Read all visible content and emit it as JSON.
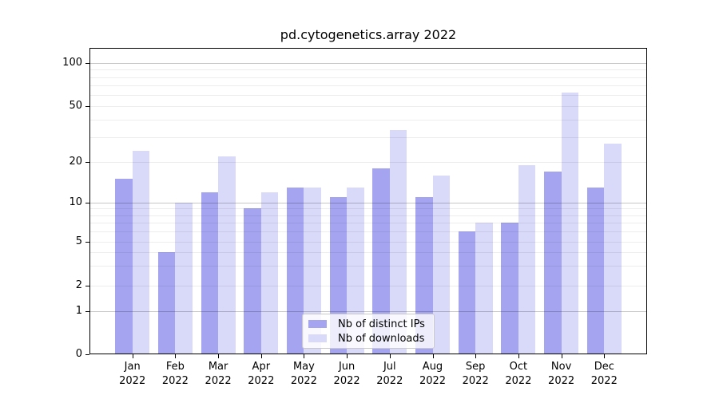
{
  "title": "pd.cytogenetics.array 2022",
  "legend": {
    "items": [
      {
        "label": "Nb of distinct IPs",
        "color": "#a4a4f1"
      },
      {
        "label": "Nb of downloads",
        "color": "#d9d9f9"
      }
    ]
  },
  "chart_data": {
    "type": "bar",
    "title": "pd.cytogenetics.array 2022",
    "categories": [
      "Jan 2022",
      "Feb 2022",
      "Mar 2022",
      "Apr 2022",
      "May 2022",
      "Jun 2022",
      "Jul 2022",
      "Aug 2022",
      "Sep 2022",
      "Oct 2022",
      "Nov 2022",
      "Dec 2022"
    ],
    "series": [
      {
        "name": "Nb of distinct IPs",
        "color": "#a4a4f1",
        "values": [
          15,
          4,
          12,
          9,
          13,
          11,
          18,
          11,
          6,
          7,
          17,
          13
        ]
      },
      {
        "name": "Nb of downloads",
        "color": "#d9d9f9",
        "values": [
          24,
          10,
          22,
          12,
          13,
          13,
          34,
          16,
          7,
          19,
          62,
          27
        ]
      }
    ],
    "yticks": [
      0,
      1,
      2,
      5,
      10,
      20,
      50,
      100
    ],
    "ylim": [
      0,
      130
    ],
    "yscale": "log-like above 1, linear 0-1 (ticks 0,1,2,5,10,20,50,100)",
    "grid": "horizontal; light minor log lines, darker lines at 1, 10, 100",
    "legend_position": "lower center inside plot",
    "xlabel": "",
    "ylabel": ""
  },
  "colors": {
    "background": "#ffffff",
    "axis": "#000000",
    "grid_major": "rgba(0,0,0,0.22)",
    "grid_minor": "rgba(0,0,0,0.07)"
  }
}
